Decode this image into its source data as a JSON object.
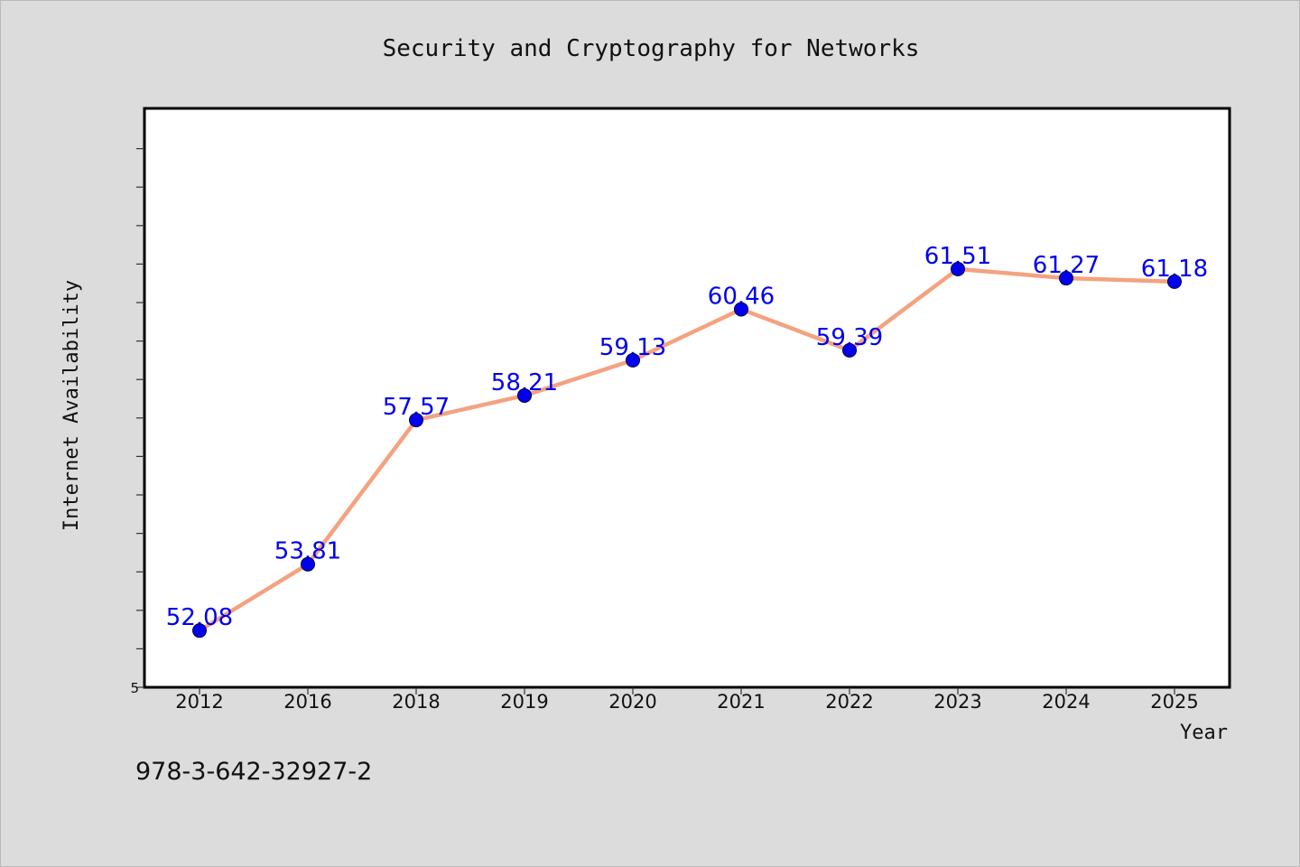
{
  "chart_data": {
    "type": "line",
    "title": "Security and Cryptography for Networks",
    "xlabel": "Year",
    "ylabel": "Internet Availability",
    "categories": [
      "2012",
      "2016",
      "2018",
      "2019",
      "2020",
      "2021",
      "2022",
      "2023",
      "2024",
      "2025"
    ],
    "series": [
      {
        "values": [
          52.08,
          53.81,
          57.57,
          58.21,
          59.13,
          60.46,
          59.39,
          61.51,
          61.27,
          61.18
        ],
        "labels": [
          "52.08",
          "53.81",
          "57.57",
          "58.21",
          "59.13",
          "60.46",
          "59.39",
          "61.51",
          "61.27",
          "61.18"
        ],
        "line_color": "#f4a27f",
        "marker_color": "#0000ee",
        "label_color": "#0000ee"
      }
    ],
    "y_tick_label": "5",
    "ylim": [
      50.6,
      65.7
    ],
    "grid": false,
    "legend": "none"
  },
  "footer": {
    "isbn": "978-3-642-32927-2"
  }
}
